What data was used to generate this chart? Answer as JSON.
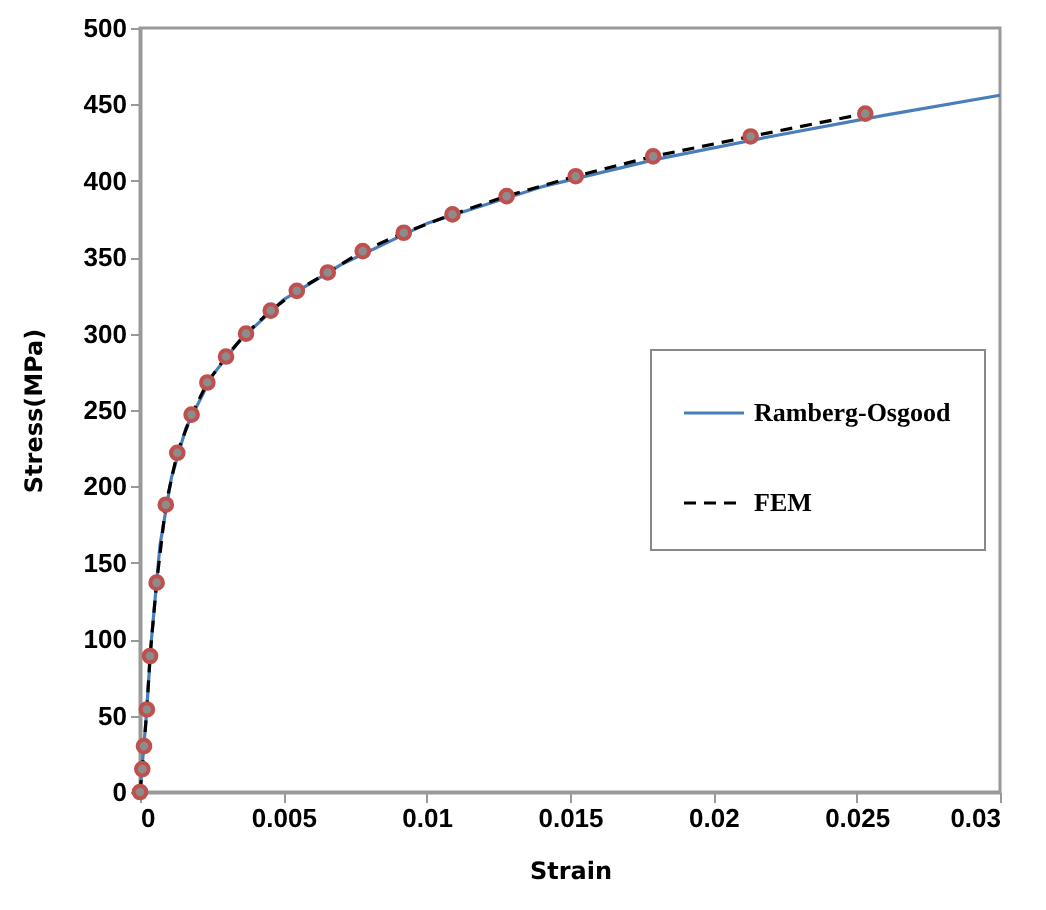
{
  "chart_data": {
    "type": "line",
    "xlabel": "Strain",
    "ylabel": "Stress(MPa)",
    "xlim": [
      0,
      0.03
    ],
    "ylim": [
      0,
      500
    ],
    "xticks": [
      0,
      0.005,
      0.01,
      0.015,
      0.02,
      0.025,
      0.03
    ],
    "yticks": [
      0,
      50,
      100,
      150,
      200,
      250,
      300,
      350,
      400,
      450,
      500
    ],
    "grid": false,
    "legend": "right",
    "series": [
      {
        "name": "Ramberg-Osgood",
        "color": "#4a7ebb",
        "line_style": "solid",
        "marker": "none",
        "x": [
          0,
          0.0002,
          0.0004,
          0.0007,
          0.0011,
          0.0016,
          0.0025,
          0.0035,
          0.005,
          0.007,
          0.01,
          0.014,
          0.018,
          0.022,
          0.026,
          0.03
        ],
        "values": [
          0,
          45,
          100,
          162,
          206,
          238,
          272,
          296,
          322,
          345,
          372,
          396,
          414,
          429,
          443,
          456
        ]
      },
      {
        "name": "FEM",
        "color": "#000000",
        "line_style": "dashed",
        "marker": "circle",
        "x": [
          0,
          8e-05,
          0.00014,
          0.00024,
          0.00035,
          0.00058,
          0.0009,
          0.0013,
          0.0018,
          0.00235,
          0.003,
          0.0037,
          0.00456,
          0.00547,
          0.00655,
          0.00777,
          0.0092,
          0.0109,
          0.01279,
          0.0152,
          0.0179,
          0.0213,
          0.0253
        ],
        "values": [
          0,
          15,
          30,
          54,
          89,
          137,
          188,
          222,
          247,
          268,
          285,
          300,
          315,
          328,
          340,
          354,
          366,
          378,
          390,
          403,
          416,
          429,
          444
        ]
      }
    ]
  }
}
